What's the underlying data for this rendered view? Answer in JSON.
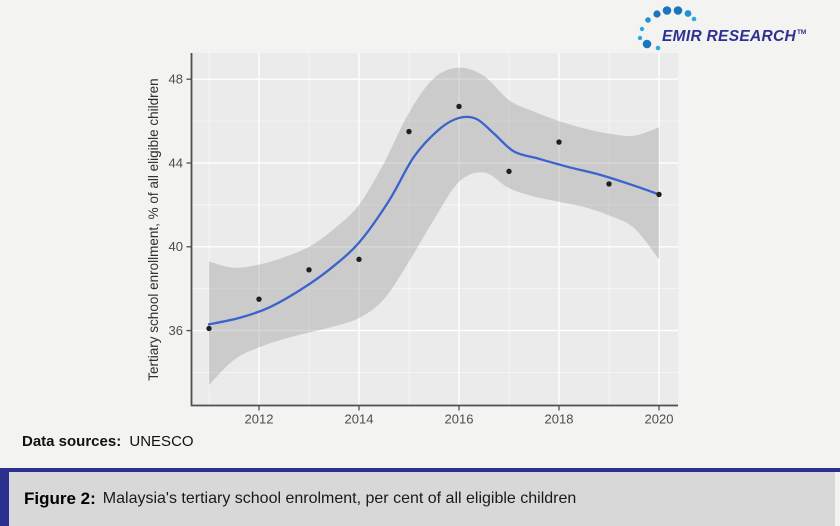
{
  "logo": {
    "text": "EMIR RESEARCH",
    "trademark": "TM"
  },
  "source": {
    "label": "Data sources:",
    "value": "UNESCO"
  },
  "footer": {
    "label": "Figure 2:",
    "caption": "Malaysia's tertiary school enrolment, per cent of all eligible children"
  },
  "colors": {
    "brand_navy": "#2e3192",
    "logo_dot_dark": "#1b75bc",
    "logo_dot_light": "#2ba9e0",
    "panel_bg": "#ebebeb",
    "grid": "#ffffff",
    "band_fill": "#999999",
    "band_opacity": 0.38,
    "smooth_line": "#3b63cd",
    "point": "#1f1f1f",
    "axis": "#4f4f4f",
    "tick_label": "#4d4d4d",
    "footer_bg": "#d8d8d8",
    "page_bg": "#f3f3f2"
  },
  "chart_data": {
    "type": "scatter",
    "title": "",
    "xlabel": "",
    "ylabel": "Tertiary school enrollment, % of all eligible children",
    "x": [
      2011,
      2012,
      2013,
      2014,
      2015,
      2016,
      2017,
      2018,
      2019,
      2020
    ],
    "values": [
      36.1,
      37.5,
      38.9,
      39.4,
      45.5,
      46.7,
      43.6,
      45.0,
      43.0,
      42.5
    ],
    "smooth_line": {
      "x": [
        2011,
        2011.6,
        2012.2,
        2012.8,
        2013.4,
        2014,
        2014.6,
        2015.1,
        2015.6,
        2016,
        2016.35,
        2016.7,
        2017.1,
        2017.6,
        2018.2,
        2018.8,
        2019.4,
        2020
      ],
      "y": [
        36.3,
        36.6,
        37.1,
        37.9,
        38.9,
        40.2,
        42.2,
        44.3,
        45.6,
        46.15,
        46.1,
        45.4,
        44.55,
        44.2,
        43.8,
        43.45,
        43.0,
        42.5
      ]
    },
    "confidence_band": {
      "x": [
        2011,
        2011.5,
        2012,
        2012.5,
        2013,
        2013.5,
        2014,
        2014.5,
        2015,
        2015.5,
        2016,
        2016.5,
        2017,
        2017.5,
        2018,
        2018.5,
        2019,
        2019.5,
        2020
      ],
      "upper": [
        39.3,
        39.0,
        39.15,
        39.5,
        40.0,
        40.85,
        42.0,
        44.0,
        46.4,
        48.05,
        48.55,
        48.15,
        47.0,
        46.45,
        46.0,
        45.65,
        45.4,
        45.3,
        45.7
      ],
      "lower": [
        33.4,
        34.6,
        35.2,
        35.6,
        35.9,
        36.2,
        36.6,
        37.5,
        39.3,
        41.3,
        43.1,
        43.55,
        42.8,
        42.4,
        42.15,
        41.9,
        41.5,
        40.9,
        39.4
      ]
    },
    "xlim": [
      2010.64,
      2020.38
    ],
    "ylim": [
      32.4,
      49.25
    ],
    "xticks": [
      2012,
      2014,
      2016,
      2018,
      2020
    ],
    "yticks": [
      36,
      40,
      44,
      48
    ],
    "xticks_minor": [
      2011,
      2013,
      2015,
      2017,
      2019
    ],
    "yticks_minor": [
      34,
      38,
      42,
      46
    ],
    "grid": true,
    "legend_position": "none"
  }
}
